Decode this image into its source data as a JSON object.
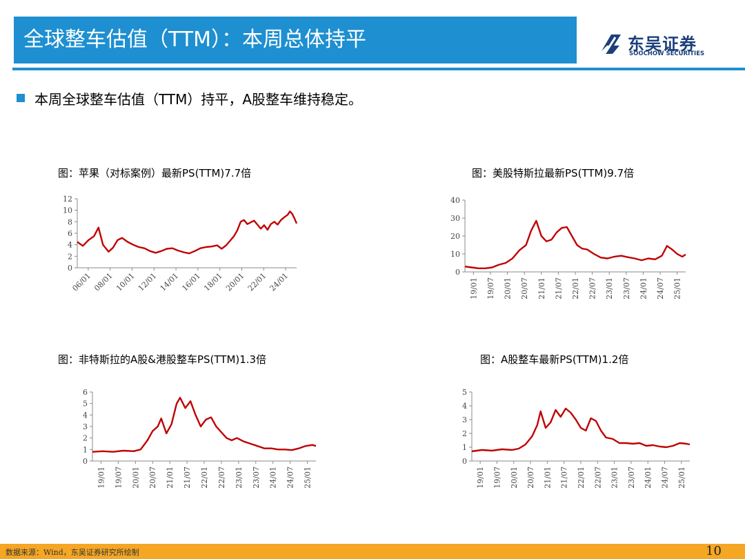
{
  "header": {
    "title": "全球整车估值（TTM）：本周总体持平",
    "logo_cn": "东吴证券",
    "logo_en": "SOOCHOW SECURITIES",
    "accent_color": "#1E8FD0",
    "logo_color": "#1B3F7A"
  },
  "summary": {
    "text": "本周全球整车估值（TTM）持平，A股整车维持稳定。"
  },
  "footer": {
    "source": "数据来源：Wind，东吴证券研究所绘制",
    "page": "10",
    "color": "#F5A623"
  },
  "chart_data": [
    {
      "type": "line",
      "title": "图：苹果（对标案例）最新PS(TTM)7.7倍",
      "x_ticks": [
        "06/01",
        "08/01",
        "10/01",
        "12/01",
        "14/01",
        "16/01",
        "18/01",
        "20/01",
        "22/01",
        "24/01"
      ],
      "y_ticks": [
        "0",
        "2",
        "4",
        "6",
        "8",
        "10",
        "12"
      ],
      "ylim": [
        0,
        12
      ],
      "xlim": [
        2006.0,
        2025.6
      ],
      "series": [
        {
          "color": "#C00000",
          "x": [
            2006.0,
            2006.5,
            2007.0,
            2007.5,
            2007.9,
            2008.3,
            2008.8,
            2009.2,
            2009.6,
            2010.0,
            2010.5,
            2011.0,
            2011.5,
            2012.0,
            2012.5,
            2013.0,
            2013.5,
            2014.0,
            2014.5,
            2015.0,
            2015.5,
            2016.0,
            2016.5,
            2017.0,
            2017.5,
            2018.0,
            2018.5,
            2018.9,
            2019.3,
            2019.7,
            2020.0,
            2020.3,
            2020.6,
            2020.9,
            2021.2,
            2021.5,
            2021.8,
            2022.1,
            2022.4,
            2022.7,
            2023.0,
            2023.3,
            2023.6,
            2023.9,
            2024.2,
            2024.5,
            2024.8,
            2025.0,
            2025.2,
            2025.4,
            2025.6
          ],
          "y": [
            4.5,
            3.8,
            4.8,
            5.5,
            7.0,
            4.0,
            2.8,
            3.5,
            4.8,
            5.2,
            4.5,
            4.0,
            3.6,
            3.4,
            2.9,
            2.6,
            2.9,
            3.3,
            3.4,
            3.0,
            2.7,
            2.5,
            2.9,
            3.4,
            3.6,
            3.7,
            3.9,
            3.3,
            3.9,
            4.8,
            5.5,
            6.5,
            8.0,
            8.3,
            7.6,
            7.9,
            8.2,
            7.5,
            6.8,
            7.4,
            6.6,
            7.6,
            8.0,
            7.5,
            8.3,
            8.8,
            9.2,
            9.8,
            9.4,
            8.6,
            7.7
          ]
        }
      ]
    },
    {
      "type": "line",
      "title": "图：美股特斯拉最新PS(TTM)9.7倍",
      "x_ticks": [
        "19/01",
        "19/07",
        "20/01",
        "20/07",
        "21/01",
        "21/07",
        "22/01",
        "22/07",
        "23/01",
        "23/07",
        "24/01",
        "24/07",
        "25/01"
      ],
      "y_ticks": [
        "0",
        "10",
        "20",
        "30",
        "40"
      ],
      "ylim": [
        0,
        40
      ],
      "xlim": [
        2019.0,
        2025.5
      ],
      "series": [
        {
          "color": "#C00000",
          "x": [
            2019.0,
            2019.2,
            2019.4,
            2019.6,
            2019.8,
            2020.0,
            2020.2,
            2020.4,
            2020.6,
            2020.8,
            2020.95,
            2021.1,
            2021.25,
            2021.4,
            2021.55,
            2021.7,
            2021.85,
            2022.0,
            2022.15,
            2022.3,
            2022.45,
            2022.6,
            2022.8,
            2023.0,
            2023.2,
            2023.4,
            2023.6,
            2023.8,
            2024.0,
            2024.2,
            2024.4,
            2024.6,
            2024.8,
            2024.95,
            2025.1,
            2025.25,
            2025.4,
            2025.5
          ],
          "y": [
            3.0,
            2.5,
            2.0,
            2.0,
            2.5,
            4.0,
            5.0,
            7.5,
            12.0,
            15.0,
            23.0,
            28.5,
            20.0,
            17.0,
            18.0,
            22.0,
            24.5,
            25.0,
            20.0,
            15.0,
            13.0,
            12.5,
            10.0,
            8.0,
            7.5,
            8.5,
            9.0,
            8.2,
            7.5,
            6.5,
            7.5,
            7.0,
            9.0,
            14.5,
            12.5,
            10.0,
            8.5,
            9.7
          ]
        }
      ]
    },
    {
      "type": "line",
      "title": "图：非特斯拉的A股&港股整车PS(TTM)1.3倍",
      "x_ticks": [
        "19/01",
        "19/07",
        "20/01",
        "20/07",
        "21/01",
        "21/07",
        "22/01",
        "22/07",
        "23/01",
        "23/07",
        "24/01",
        "24/07",
        "25/01"
      ],
      "y_ticks": [
        "0",
        "1",
        "2",
        "3",
        "4",
        "5",
        "6"
      ],
      "ylim": [
        0,
        6
      ],
      "xlim": [
        2019.0,
        2025.5
      ],
      "series": [
        {
          "color": "#C00000",
          "x": [
            2019.0,
            2019.3,
            2019.6,
            2019.9,
            2020.2,
            2020.4,
            2020.6,
            2020.75,
            2020.9,
            2021.0,
            2021.15,
            2021.3,
            2021.45,
            2021.55,
            2021.7,
            2021.85,
            2022.0,
            2022.15,
            2022.3,
            2022.45,
            2022.6,
            2022.75,
            2022.9,
            2023.05,
            2023.2,
            2023.4,
            2023.6,
            2023.8,
            2024.0,
            2024.2,
            2024.4,
            2024.6,
            2024.8,
            2025.0,
            2025.2,
            2025.4,
            2025.5
          ],
          "y": [
            0.8,
            0.85,
            0.8,
            0.9,
            0.85,
            1.0,
            1.8,
            2.6,
            3.0,
            3.7,
            2.4,
            3.2,
            5.0,
            5.5,
            4.6,
            5.2,
            4.0,
            3.0,
            3.6,
            3.8,
            3.0,
            2.5,
            2.0,
            1.8,
            2.0,
            1.7,
            1.5,
            1.3,
            1.1,
            1.1,
            1.0,
            1.0,
            0.95,
            1.1,
            1.3,
            1.4,
            1.3
          ]
        }
      ]
    },
    {
      "type": "line",
      "title": "图：A股整车最新PS(TTM)1.2倍",
      "x_ticks": [
        "19/01",
        "19/07",
        "20/01",
        "20/07",
        "21/01",
        "21/07",
        "22/01",
        "22/07",
        "23/01",
        "23/07",
        "24/01",
        "24/07",
        "25/01"
      ],
      "y_ticks": [
        "0",
        "1",
        "2",
        "3",
        "4",
        "5"
      ],
      "ylim": [
        0,
        5
      ],
      "xlim": [
        2019.0,
        2025.5
      ],
      "series": [
        {
          "color": "#C00000",
          "x": [
            2019.0,
            2019.3,
            2019.6,
            2019.9,
            2020.2,
            2020.4,
            2020.6,
            2020.8,
            2020.95,
            2021.05,
            2021.2,
            2021.35,
            2021.5,
            2021.65,
            2021.8,
            2021.95,
            2022.1,
            2022.25,
            2022.4,
            2022.55,
            2022.7,
            2022.85,
            2023.0,
            2023.2,
            2023.4,
            2023.6,
            2023.8,
            2024.0,
            2024.2,
            2024.4,
            2024.6,
            2024.8,
            2025.0,
            2025.2,
            2025.4,
            2025.5
          ],
          "y": [
            0.7,
            0.8,
            0.75,
            0.85,
            0.8,
            0.9,
            1.2,
            1.8,
            2.6,
            3.6,
            2.4,
            2.8,
            3.7,
            3.2,
            3.8,
            3.5,
            3.0,
            2.4,
            2.2,
            3.1,
            2.9,
            2.2,
            1.7,
            1.6,
            1.3,
            1.3,
            1.25,
            1.3,
            1.1,
            1.15,
            1.05,
            1.0,
            1.1,
            1.3,
            1.25,
            1.2
          ]
        }
      ]
    }
  ]
}
